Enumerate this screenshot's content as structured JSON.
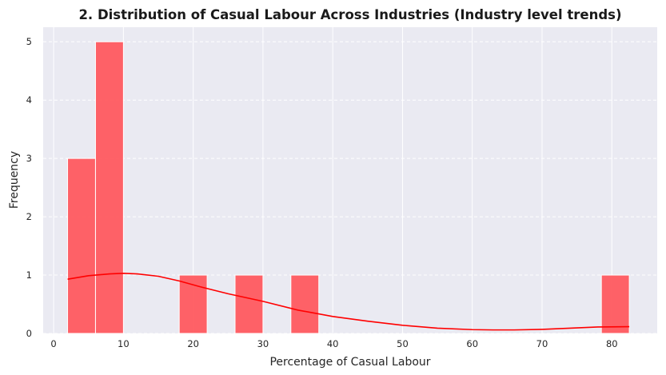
{
  "chart_data": {
    "type": "bar",
    "subtype": "histogram",
    "title": "2. Distribution of Casual Labour Across Industries (Industry level trends)",
    "xlabel": "Percentage of Casual Labour",
    "ylabel": "Frequency",
    "xlim": [
      -1.5,
      86.5
    ],
    "ylim": [
      0,
      5.25
    ],
    "xticks": [
      0,
      10,
      20,
      30,
      40,
      50,
      60,
      70,
      80
    ],
    "yticks": [
      0,
      1,
      2,
      3,
      4,
      5
    ],
    "grid": true,
    "colors": {
      "bar": "#ff5a5f",
      "kde": "#ff0000",
      "background": "#eaeaf2",
      "grid": "#ffffff"
    },
    "bins": [
      {
        "x0": 2.0,
        "x1": 6.0,
        "count": 3
      },
      {
        "x0": 6.0,
        "x1": 10.0,
        "count": 5
      },
      {
        "x0": 18.0,
        "x1": 22.0,
        "count": 1
      },
      {
        "x0": 26.0,
        "x1": 30.0,
        "count": 1
      },
      {
        "x0": 34.0,
        "x1": 38.0,
        "count": 1
      },
      {
        "x0": 78.5,
        "x1": 82.5,
        "count": 1
      }
    ],
    "kde": {
      "x": [
        2,
        5,
        8,
        10,
        12,
        15,
        18,
        21,
        25,
        30,
        35,
        40,
        45,
        50,
        55,
        60,
        63,
        66,
        70,
        74,
        78,
        82.5
      ],
      "y": [
        0.93,
        0.99,
        1.02,
        1.03,
        1.02,
        0.98,
        0.9,
        0.8,
        0.68,
        0.55,
        0.4,
        0.29,
        0.21,
        0.14,
        0.09,
        0.065,
        0.06,
        0.06,
        0.07,
        0.09,
        0.11,
        0.115
      ]
    }
  }
}
